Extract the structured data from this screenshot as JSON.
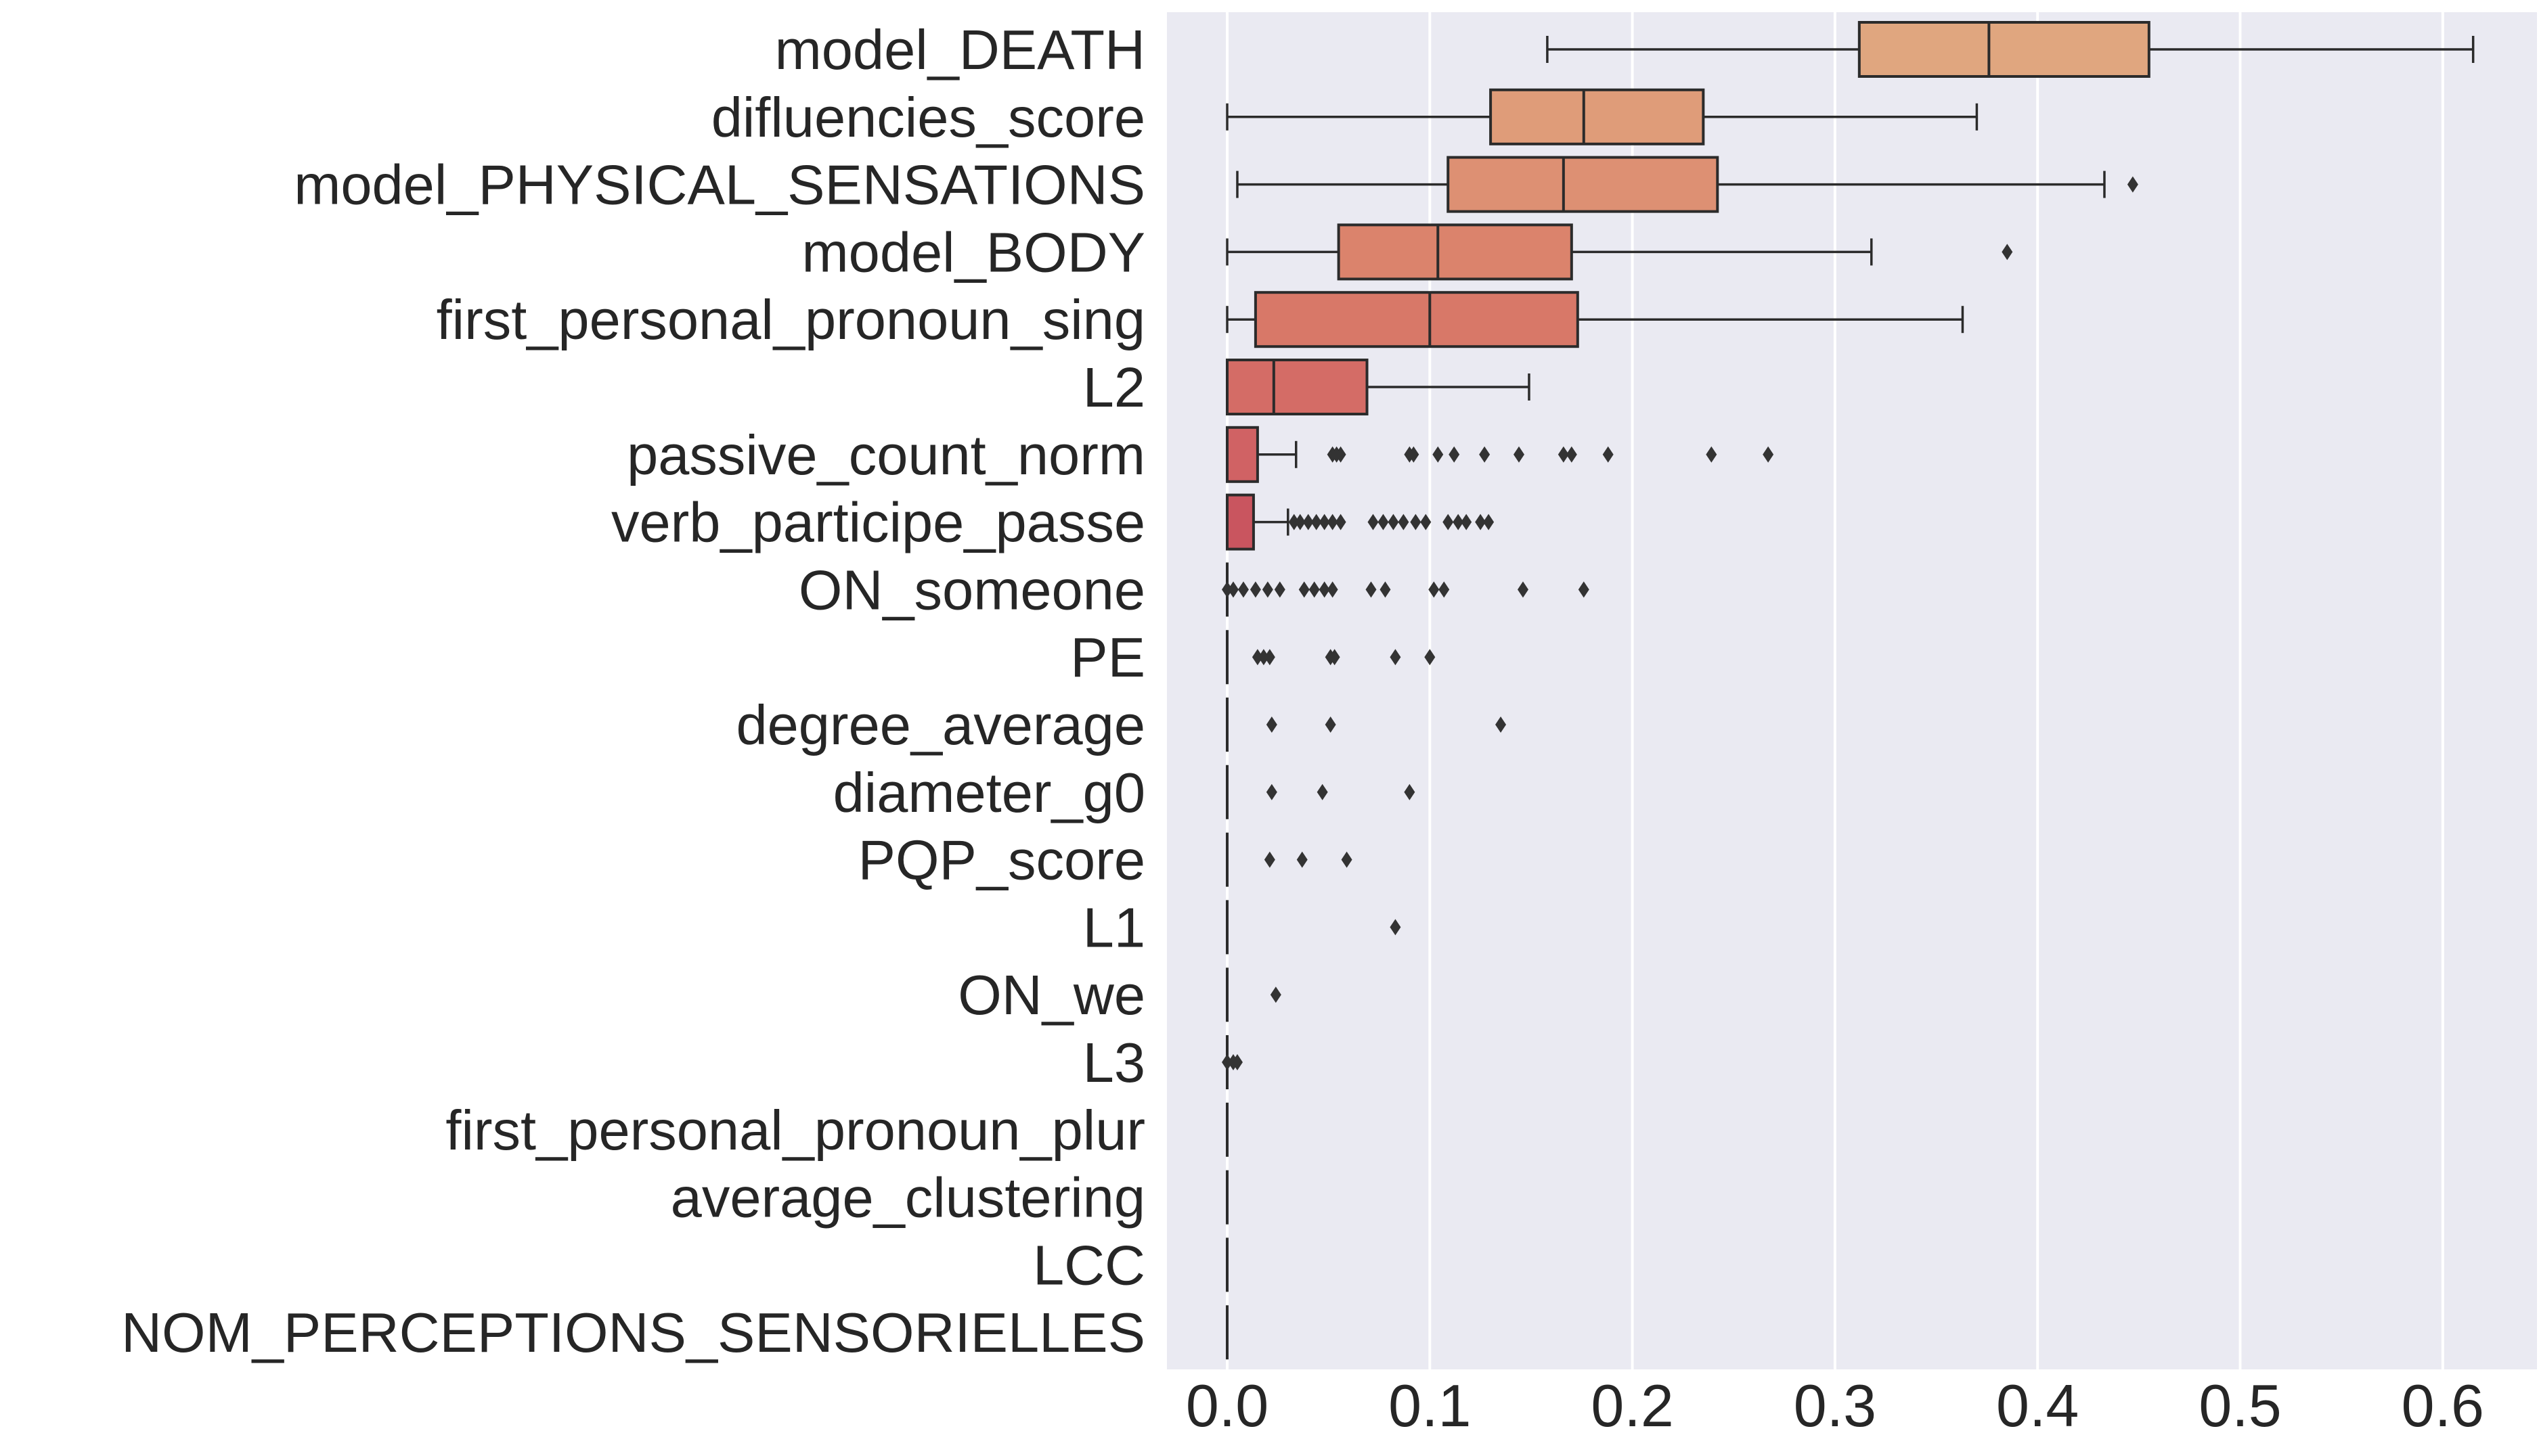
{
  "chart_data": {
    "type": "boxplot",
    "orientation": "horizontal",
    "xlim": [
      -0.03,
      0.645
    ],
    "xticks": [
      0.0,
      0.1,
      0.2,
      0.3,
      0.4,
      0.5,
      0.6
    ],
    "xtick_labels": [
      "0.0",
      "0.1",
      "0.2",
      "0.3",
      "0.4",
      "0.5",
      "0.6"
    ],
    "grid": true,
    "background": "#EAEAF2",
    "grid_color": "#ffffff",
    "categories": [
      "model_DEATH",
      "difluencies_score",
      "model_PHYSICAL_SENSATIONS",
      "model_BODY",
      "first_personal_pronoun_sing",
      "L2",
      "passive_count_norm",
      "verb_participe_passe",
      "ON_someone",
      "PE",
      "degree_average",
      "diameter_g0",
      "PQP_score",
      "L1",
      "ON_we",
      "L3",
      "first_personal_pronoun_plur",
      "average_clustering",
      "LCC",
      "NOM_PERCEPTIONS_SENSORIELLES"
    ],
    "boxes": [
      {
        "whislo": 0.158,
        "q1": 0.312,
        "med": 0.376,
        "q3": 0.455,
        "whishi": 0.615,
        "fliers": [],
        "color": "#E0A67F"
      },
      {
        "whislo": 0.0,
        "q1": 0.13,
        "med": 0.176,
        "q3": 0.235,
        "whishi": 0.37,
        "fliers": [],
        "color": "#DF9C79"
      },
      {
        "whislo": 0.005,
        "q1": 0.109,
        "med": 0.166,
        "q3": 0.242,
        "whishi": 0.433,
        "fliers": [
          0.447
        ],
        "color": "#DD9073"
      },
      {
        "whislo": 0.0,
        "q1": 0.055,
        "med": 0.104,
        "q3": 0.17,
        "whishi": 0.318,
        "fliers": [
          0.385
        ],
        "color": "#DB836C"
      },
      {
        "whislo": 0.0,
        "q1": 0.014,
        "med": 0.1,
        "q3": 0.173,
        "whishi": 0.363,
        "fliers": [],
        "color": "#D87868"
      },
      {
        "whislo": 0.0,
        "q1": 0.0,
        "med": 0.023,
        "q3": 0.069,
        "whishi": 0.149,
        "fliers": [],
        "color": "#D46C66"
      },
      {
        "whislo": 0.0,
        "q1": 0.0,
        "med": 0.0,
        "q3": 0.015,
        "whishi": 0.034,
        "fliers": [
          0.052,
          0.054,
          0.056,
          0.09,
          0.092,
          0.104,
          0.112,
          0.127,
          0.144,
          0.166,
          0.17,
          0.188,
          0.239,
          0.267
        ],
        "color": "#D06264"
      },
      {
        "whislo": 0.0,
        "q1": 0.0,
        "med": 0.0,
        "q3": 0.013,
        "whishi": 0.03,
        "fliers": [
          0.033,
          0.036,
          0.04,
          0.044,
          0.048,
          0.052,
          0.056,
          0.072,
          0.077,
          0.082,
          0.087,
          0.093,
          0.098,
          0.109,
          0.114,
          0.118,
          0.125,
          0.129
        ],
        "color": "#C9555F"
      },
      {
        "whislo": 0.0,
        "q1": 0.0,
        "med": 0.0,
        "q3": 0.0,
        "whishi": 0.0,
        "fliers": [
          0.0,
          0.003,
          0.008,
          0.014,
          0.02,
          0.026,
          0.038,
          0.043,
          0.048,
          0.052,
          0.071,
          0.078,
          0.102,
          0.107,
          0.146,
          0.176
        ],
        "color": "#C4505B"
      },
      {
        "whislo": 0.0,
        "q1": 0.0,
        "med": 0.0,
        "q3": 0.0,
        "whishi": 0.0,
        "fliers": [
          0.015,
          0.018,
          0.021,
          0.051,
          0.053,
          0.083,
          0.1
        ],
        "color": "#BE4A58"
      },
      {
        "whislo": 0.0,
        "q1": 0.0,
        "med": 0.0,
        "q3": 0.0,
        "whishi": 0.0,
        "fliers": [
          0.022,
          0.051,
          0.135
        ],
        "color": "#B94556"
      },
      {
        "whislo": 0.0,
        "q1": 0.0,
        "med": 0.0,
        "q3": 0.0,
        "whishi": 0.0,
        "fliers": [
          0.022,
          0.047,
          0.09
        ],
        "color": "#B34054"
      },
      {
        "whislo": 0.0,
        "q1": 0.0,
        "med": 0.0,
        "q3": 0.0,
        "whishi": 0.0,
        "fliers": [
          0.021,
          0.037,
          0.059
        ],
        "color": "#AD3B52"
      },
      {
        "whislo": 0.0,
        "q1": 0.0,
        "med": 0.0,
        "q3": 0.0,
        "whishi": 0.0,
        "fliers": [
          0.083
        ],
        "color": "#A73650"
      },
      {
        "whislo": 0.0,
        "q1": 0.0,
        "med": 0.0,
        "q3": 0.0,
        "whishi": 0.0,
        "fliers": [
          0.024
        ],
        "color": "#A0324F"
      },
      {
        "whislo": 0.0,
        "q1": 0.0,
        "med": 0.0,
        "q3": 0.0,
        "whishi": 0.0,
        "fliers": [
          0.0,
          0.003,
          0.005
        ],
        "color": "#9A2E4D"
      },
      {
        "whislo": 0.0,
        "q1": 0.0,
        "med": 0.0,
        "q3": 0.0,
        "whishi": 0.0,
        "fliers": [],
        "color": "#932B4C"
      },
      {
        "whislo": 0.0,
        "q1": 0.0,
        "med": 0.0,
        "q3": 0.0,
        "whishi": 0.0,
        "fliers": [],
        "color": "#8D284A"
      },
      {
        "whislo": 0.0,
        "q1": 0.0,
        "med": 0.0,
        "q3": 0.0,
        "whishi": 0.0,
        "fliers": [],
        "color": "#862548"
      },
      {
        "whislo": 0.0,
        "q1": 0.0,
        "med": 0.0,
        "q3": 0.0,
        "whishi": 0.0,
        "fliers": [],
        "color": "#7F2346"
      }
    ]
  }
}
